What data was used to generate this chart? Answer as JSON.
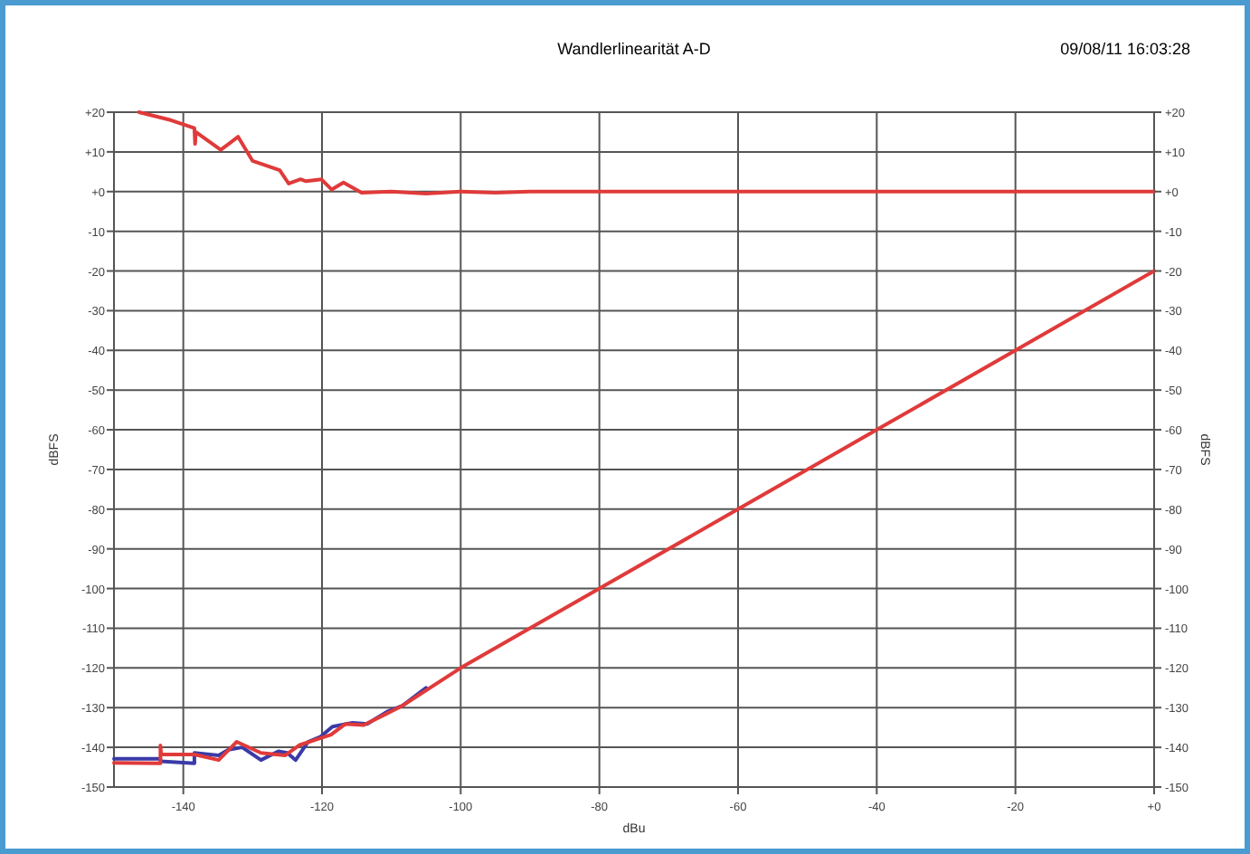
{
  "chart_data": {
    "type": "line",
    "title": "Wandlerlinearität A-D",
    "xlabel": "dBu",
    "ylabel": "dBFS",
    "y2label": "dBFS",
    "annotations": [
      "09/08/11 16:03:28"
    ],
    "xlim": [
      -150,
      0
    ],
    "xticks": [
      -140,
      -120,
      -100,
      -80,
      -60,
      -40,
      -20,
      {
        "value": 0,
        "label": "+0"
      }
    ],
    "ylim": [
      -150,
      20
    ],
    "yticks": [
      -150,
      -140,
      -130,
      -120,
      -110,
      -100,
      -90,
      -80,
      -70,
      -60,
      -50,
      -40,
      -30,
      -20,
      -10,
      {
        "value": 0,
        "label": "+0"
      },
      {
        "value": 10,
        "label": "+10"
      },
      {
        "value": 20,
        "label": "+20"
      }
    ],
    "y2lim": [
      -150,
      20
    ],
    "y2ticks": [
      -150,
      -140,
      -130,
      -120,
      -110,
      -100,
      -90,
      -80,
      -70,
      -60,
      -50,
      -40,
      -30,
      -20,
      -10,
      {
        "value": 0,
        "label": "+0"
      },
      {
        "value": 10,
        "label": "+10"
      },
      {
        "value": 20,
        "label": "+20"
      }
    ],
    "grid": true,
    "marker": "none",
    "line_style": "solid",
    "series": [
      {
        "color": "#e03a3a",
        "x": [
          -146.4,
          -141.8,
          -138.4,
          -138.3,
          -138.2,
          -134.6,
          -132.1,
          -130,
          -126.1,
          -124.8,
          -123.1,
          -122.3,
          -120.1,
          -118.6,
          -116.9,
          -114.3,
          -110,
          -105,
          -100,
          -95,
          -90,
          -80,
          -60,
          -40,
          -20,
          0
        ],
        "values": [
          20,
          18,
          16,
          12,
          15,
          10.5,
          13.8,
          7.7,
          5.4,
          2,
          3.1,
          2.6,
          3.1,
          0.5,
          2.3,
          -0.3,
          0,
          -0.5,
          0,
          -0.3,
          0,
          0,
          0,
          0,
          0,
          0
        ]
      },
      {
        "color": "#3a3aa8",
        "x": [
          -150,
          -143.3,
          -143.3,
          -138.4,
          -138.4,
          -134.9,
          -133.5,
          -131.5,
          -128.8,
          -126.3,
          -125,
          -123.8,
          -122,
          -120.2,
          -118.5,
          -115.6,
          -113.5,
          -110.6,
          -108.4,
          -105
        ],
        "values": [
          -142.9,
          -142.9,
          -143.5,
          -144,
          -141.4,
          -142,
          -140.6,
          -140,
          -143.2,
          -141,
          -141.4,
          -143.2,
          -138.6,
          -137.3,
          -134.8,
          -133.8,
          -134.1,
          -131,
          -129.5,
          -125
        ]
      },
      {
        "color": "#e03a3a",
        "x": [
          -150,
          -143.3,
          -143.3,
          -143.2,
          -143.1,
          -138.4,
          -134.9,
          -132.3,
          -128.8,
          -125.3,
          -123.2,
          -120.4,
          -118.7,
          -116.6,
          -114,
          -111,
          -108.4,
          -100,
          -80,
          -60,
          -40,
          -20,
          0
        ],
        "values": [
          -143.9,
          -144,
          -139.5,
          -141.6,
          -141.8,
          -141.8,
          -143.2,
          -138.6,
          -141.4,
          -142,
          -139.4,
          -137.8,
          -136.8,
          -134.1,
          -134.4,
          -131.8,
          -129.5,
          -120,
          -100,
          -80,
          -60,
          -40,
          -20
        ]
      }
    ]
  }
}
